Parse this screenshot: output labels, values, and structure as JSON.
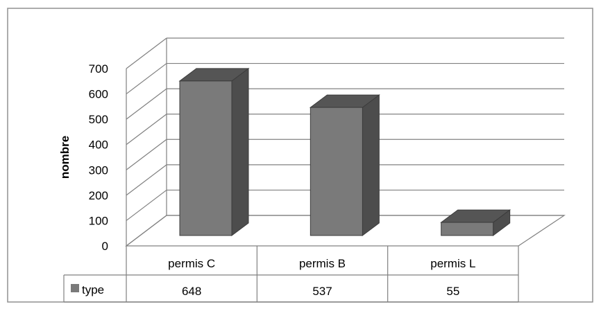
{
  "chart_data": {
    "type": "bar",
    "title": "",
    "xlabel": "",
    "ylabel": "nombre",
    "ylim": [
      0,
      700
    ],
    "yticks": [
      0,
      100,
      200,
      300,
      400,
      500,
      600,
      700
    ],
    "categories": [
      "permis C",
      "permis B",
      "permis L"
    ],
    "series": [
      {
        "name": "type",
        "values": [
          648,
          537,
          55
        ]
      }
    ],
    "grid": true,
    "legend": "data-table",
    "three_d": true,
    "colors": {
      "bar_front": "#7a7a7a",
      "bar_top": "#555555",
      "bar_side": "#4d4d4d",
      "grid": "#808080",
      "border": "#909090"
    }
  }
}
